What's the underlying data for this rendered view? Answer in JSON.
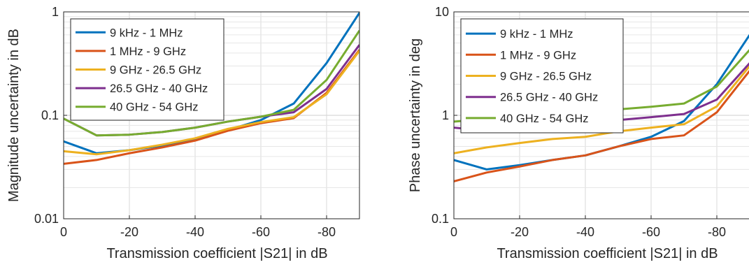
{
  "chart_data": [
    {
      "type": "line",
      "xlabel": "Transmission coefficient |S21| in dB",
      "ylabel": "Magnitude uncertainty in dB",
      "xlim": [
        0,
        -90
      ],
      "ylim": [
        0.01,
        1
      ],
      "yscale": "log",
      "grid": true,
      "legend": "top-left",
      "x": [
        0,
        -10,
        -20,
        -30,
        -40,
        -50,
        -60,
        -70,
        -80,
        -90
      ],
      "xticks": [
        0,
        -20,
        -40,
        -60,
        -80
      ],
      "xtick_labels": [
        "0",
        "-20",
        "-40",
        "-60",
        "-80"
      ],
      "yticks": [
        0.01,
        0.1,
        1
      ],
      "ytick_labels": [
        "0.01",
        "0.1",
        "1"
      ],
      "series": [
        {
          "name": "9 kHz - 1 MHz",
          "color": "#0072BD",
          "values": [
            0.056,
            0.043,
            0.046,
            0.051,
            0.058,
            0.072,
            0.09,
            0.13,
            0.32,
            0.98
          ]
        },
        {
          "name": "1 MHz - 9 GHz",
          "color": "#D95319",
          "values": [
            0.034,
            0.037,
            0.043,
            0.049,
            0.057,
            0.071,
            0.084,
            0.094,
            0.165,
            0.43
          ]
        },
        {
          "name": "9 GHz - 26.5 GHz",
          "color": "#EDB120",
          "values": [
            0.045,
            0.042,
            0.046,
            0.052,
            0.06,
            0.074,
            0.086,
            0.096,
            0.16,
            0.42
          ]
        },
        {
          "name": "26.5 GHz - 40 GHz",
          "color": "#7E2F8E",
          "values": [
            0.093,
            0.064,
            0.065,
            0.069,
            0.076,
            0.087,
            0.097,
            0.107,
            0.18,
            0.48
          ]
        },
        {
          "name": "40 GHz - 54 GHz",
          "color": "#77AC30",
          "values": [
            0.093,
            0.064,
            0.065,
            0.069,
            0.076,
            0.087,
            0.097,
            0.113,
            0.22,
            0.66
          ]
        }
      ]
    },
    {
      "type": "line",
      "xlabel": "Transmission coefficient |S21| in dB",
      "ylabel": "Phase uncertainty in deg",
      "xlim": [
        0,
        -90
      ],
      "ylim": [
        0.1,
        10
      ],
      "yscale": "log",
      "grid": true,
      "legend": "top-left",
      "x": [
        0,
        -10,
        -20,
        -30,
        -40,
        -50,
        -60,
        -70,
        -80,
        -90
      ],
      "xticks": [
        0,
        -20,
        -40,
        -60,
        -80
      ],
      "xtick_labels": [
        "0",
        "-20",
        "-40",
        "-60",
        "-80"
      ],
      "yticks": [
        0.1,
        1,
        10
      ],
      "ytick_labels": [
        "0.1",
        "1",
        "10"
      ],
      "series": [
        {
          "name": "9 kHz - 1 MHz",
          "color": "#0072BD",
          "values": [
            0.37,
            0.3,
            0.33,
            0.37,
            0.41,
            0.5,
            0.62,
            0.88,
            2.0,
            6.0
          ]
        },
        {
          "name": "1 MHz - 9 GHz",
          "color": "#D95319",
          "values": [
            0.23,
            0.28,
            0.32,
            0.37,
            0.41,
            0.5,
            0.59,
            0.64,
            1.07,
            2.7
          ]
        },
        {
          "name": "9 GHz - 26.5 GHz",
          "color": "#EDB120",
          "values": [
            0.43,
            0.49,
            0.54,
            0.59,
            0.62,
            0.7,
            0.76,
            0.82,
            1.22,
            3.0
          ]
        },
        {
          "name": "26.5 GHz - 40 GHz",
          "color": "#7E2F8E",
          "values": [
            0.76,
            0.71,
            0.75,
            0.79,
            0.84,
            0.9,
            0.96,
            1.03,
            1.42,
            3.2
          ]
        },
        {
          "name": "40 GHz - 54 GHz",
          "color": "#77AC30",
          "values": [
            0.87,
            0.92,
            0.97,
            1.02,
            1.08,
            1.14,
            1.21,
            1.3,
            1.9,
            4.3
          ]
        }
      ]
    }
  ]
}
